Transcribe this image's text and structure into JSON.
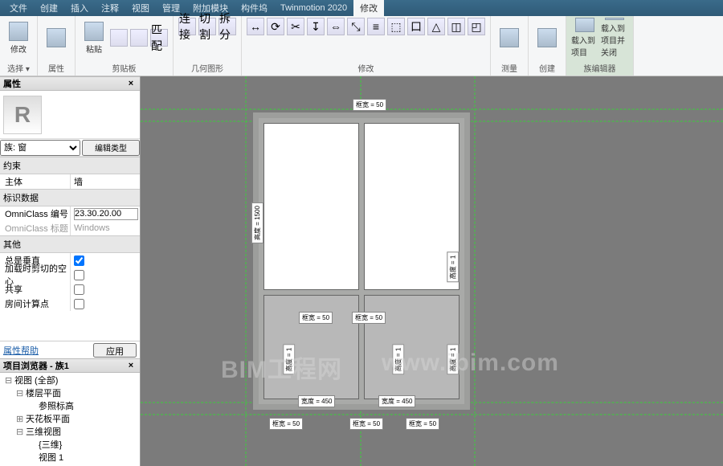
{
  "menu": {
    "tabs": [
      "文件",
      "创建",
      "插入",
      "注释",
      "视图",
      "管理",
      "附加模块",
      "构件坞",
      "Twinmotion 2020"
    ],
    "active": "修改"
  },
  "ribbon": {
    "groups": [
      {
        "label": "选择 ▾",
        "items": [
          {
            "n": "modify-cursor",
            "t": "修改"
          }
        ]
      },
      {
        "label": "属性",
        "items": [
          {
            "n": "props-panel",
            "t": ""
          }
        ]
      },
      {
        "label": "剪贴板",
        "items": [
          {
            "n": "paste",
            "t": "粘贴"
          }
        ],
        "small": [
          "剪切 ▾",
          "复制 ▾",
          "匹配"
        ]
      },
      {
        "label": "几何图形",
        "items": [],
        "small": [
          "连接",
          "切割",
          "拆分"
        ]
      },
      {
        "label": "修改",
        "items": [],
        "small": [
          "↔",
          "⟳",
          "✂",
          "↧",
          "⇔",
          "⤡",
          "≡",
          "⬚",
          "口",
          "△",
          "◫",
          "◰"
        ]
      },
      {
        "label": "测量",
        "items": [
          {
            "n": "measure",
            "t": ""
          }
        ]
      },
      {
        "label": "创建",
        "items": [
          {
            "n": "create",
            "t": ""
          }
        ]
      },
      {
        "label": "族编辑器",
        "items": [
          {
            "n": "load-proj",
            "t": "载入到\n项目"
          },
          {
            "n": "load-close",
            "t": "载入到\n项目并关闭"
          }
        ],
        "hl": true
      }
    ]
  },
  "props": {
    "title": "属性",
    "family_label": "族: 窗",
    "edit_type": "编辑类型",
    "constraints_hdr": "约束",
    "host_k": "主体",
    "host_v": "墙",
    "ident_hdr": "标识数据",
    "oc_num_k": "OmniClass 编号",
    "oc_num_v": "23.30.20.00",
    "oc_title_k": "OmniClass 标题",
    "oc_title_v": "Windows",
    "other_hdr": "其他",
    "rows": [
      {
        "k": "总是垂直",
        "chk": true
      },
      {
        "k": "加载时剪切的空心",
        "chk": false
      },
      {
        "k": "共享",
        "chk": false
      },
      {
        "k": "房间计算点",
        "chk": false
      }
    ],
    "help": "属性帮助",
    "apply": "应用"
  },
  "browser": {
    "title": "项目浏览器 - 族1",
    "nodes": [
      {
        "d": 0,
        "tw": "⊟",
        "t": "视图 (全部)"
      },
      {
        "d": 1,
        "tw": "⊟",
        "t": "楼层平面"
      },
      {
        "d": 2,
        "tw": "",
        "t": "参照标高"
      },
      {
        "d": 1,
        "tw": "⊞",
        "t": "天花板平面"
      },
      {
        "d": 1,
        "tw": "⊟",
        "t": "三维视图"
      },
      {
        "d": 2,
        "tw": "",
        "t": "{三维}"
      },
      {
        "d": 2,
        "tw": "",
        "t": "视图 1"
      }
    ]
  },
  "watermark": {
    "a": "BIM工程网",
    "b": "www.ibim.com"
  }
}
